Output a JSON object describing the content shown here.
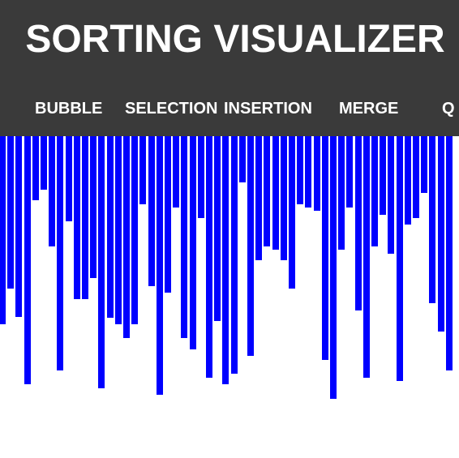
{
  "header": {
    "title": "SORTING VISUALIZER",
    "nav": [
      {
        "key": "bubble",
        "label": "BUBBLE"
      },
      {
        "key": "selection",
        "label": "SELECTION"
      },
      {
        "key": "insertion",
        "label": "INSERTION"
      },
      {
        "key": "merge",
        "label": "MERGE"
      },
      {
        "key": "quick",
        "label": "Q"
      }
    ],
    "background": "#3a3a3a",
    "text_color": "#ffffff"
  },
  "bars": {
    "color": "#0000ff",
    "values": [
      232,
      188,
      223,
      306,
      79,
      66,
      136,
      289,
      105,
      201,
      201,
      175,
      311,
      224,
      232,
      249,
      232,
      84,
      185,
      319,
      193,
      88,
      249,
      263,
      101,
      298,
      228,
      306,
      293,
      57,
      271,
      153,
      136,
      140,
      153,
      188,
      84,
      88,
      92,
      276,
      324,
      140,
      88,
      215,
      298,
      136,
      97,
      145,
      302,
      109,
      101,
      70,
      206,
      241,
      289
    ]
  }
}
